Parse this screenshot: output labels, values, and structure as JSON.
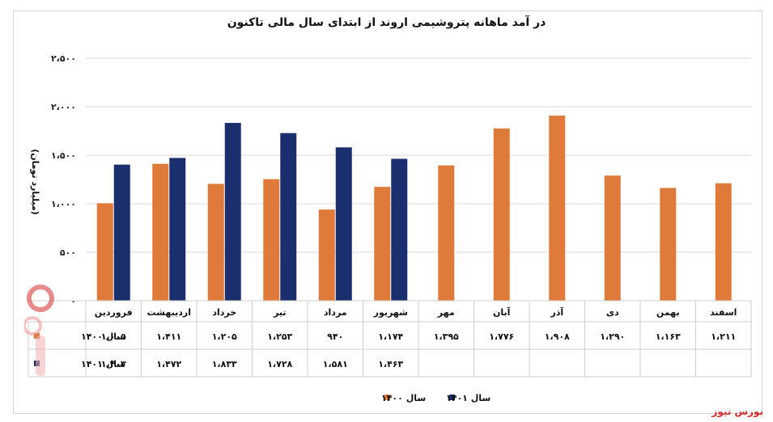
{
  "chart_data": {
    "type": "bar",
    "title": "در آمد ماهانه پتروشیمی اروند از ابتدای سال مالی تاکنون",
    "ylabel": "(میلیارد تومان)",
    "ylim": [
      0,
      2500
    ],
    "yticks": [
      0,
      500,
      1000,
      1500,
      2000,
      2500
    ],
    "ytick_labels": [
      "۰",
      "۵۰۰",
      "۱،۰۰۰",
      "۱،۵۰۰",
      "۲،۰۰۰",
      "۲،۵۰۰"
    ],
    "categories": [
      "فروردین",
      "اردیبهشت",
      "خرداد",
      "تیر",
      "مرداد",
      "شهریور",
      "مهر",
      "آبان",
      "آذر",
      "دی",
      "بهمن",
      "اسفند"
    ],
    "series": [
      {
        "name": "سال ۱۴۰۰",
        "color": "#e07a3a",
        "values": [
          1005,
          1411,
          1205,
          1253,
          940,
          1174,
          1395,
          1776,
          1908,
          1290,
          1163,
          1211
        ],
        "labels": [
          "۱،۰۰۵",
          "۱،۴۱۱",
          "۱،۲۰۵",
          "۱،۲۵۳",
          "۹۴۰",
          "۱،۱۷۴",
          "۱،۳۹۵",
          "۱،۷۷۶",
          "۱،۹۰۸",
          "۱،۲۹۰",
          "۱،۱۶۳",
          "۱،۲۱۱"
        ]
      },
      {
        "name": "سال ۱۴۰۱",
        "color": "#1b2f6e",
        "values": [
          1403,
          1472,
          1833,
          1728,
          1581,
          1463,
          null,
          null,
          null,
          null,
          null,
          null
        ],
        "labels": [
          "۱،۴۰۳",
          "۱،۴۷۲",
          "۱،۸۳۳",
          "۱،۷۲۸",
          "۱،۵۸۱",
          "۱،۴۶۳",
          "",
          "",
          "",
          "",
          "",
          ""
        ]
      }
    ],
    "grid": true,
    "legend": "bottom"
  },
  "source": "بورس نیوز",
  "logo_text": "بورس نیوز"
}
